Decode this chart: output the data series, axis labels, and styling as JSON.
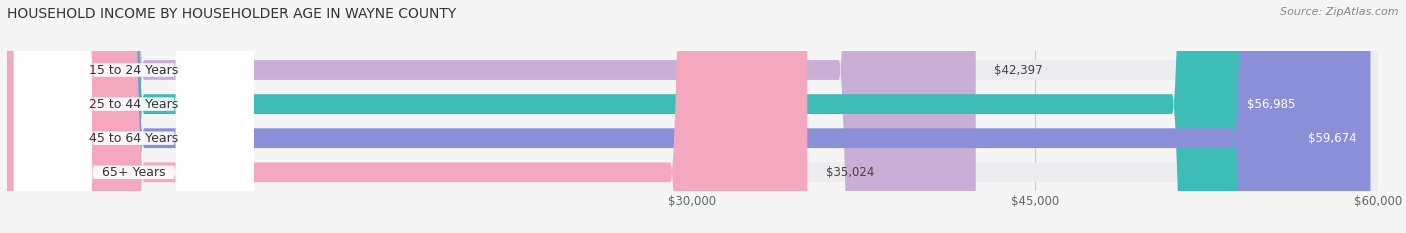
{
  "title": "HOUSEHOLD INCOME BY HOUSEHOLDER AGE IN WAYNE COUNTY",
  "source": "Source: ZipAtlas.com",
  "categories": [
    "15 to 24 Years",
    "25 to 44 Years",
    "45 to 64 Years",
    "65+ Years"
  ],
  "values": [
    42397,
    56985,
    59674,
    35024
  ],
  "bar_colors": [
    "#c9aed6",
    "#3dbcb8",
    "#8b8fd8",
    "#f4a8c0"
  ],
  "bg_bar_color": "#ebebf0",
  "xmin": 0,
  "xmax": 60000,
  "xticks": [
    30000,
    45000,
    60000
  ],
  "xtick_labels": [
    "$30,000",
    "$45,000",
    "$60,000"
  ],
  "value_labels": [
    "$42,397",
    "$56,985",
    "$59,674",
    "$35,024"
  ],
  "value_inside": [
    false,
    true,
    true,
    false
  ],
  "title_fontsize": 10,
  "source_fontsize": 8,
  "bar_label_fontsize": 9,
  "value_fontsize": 8.5,
  "tick_fontsize": 8.5,
  "bar_height": 0.58,
  "figsize": [
    14.06,
    2.33
  ],
  "dpi": 100,
  "bg_color": "#f5f5f5"
}
